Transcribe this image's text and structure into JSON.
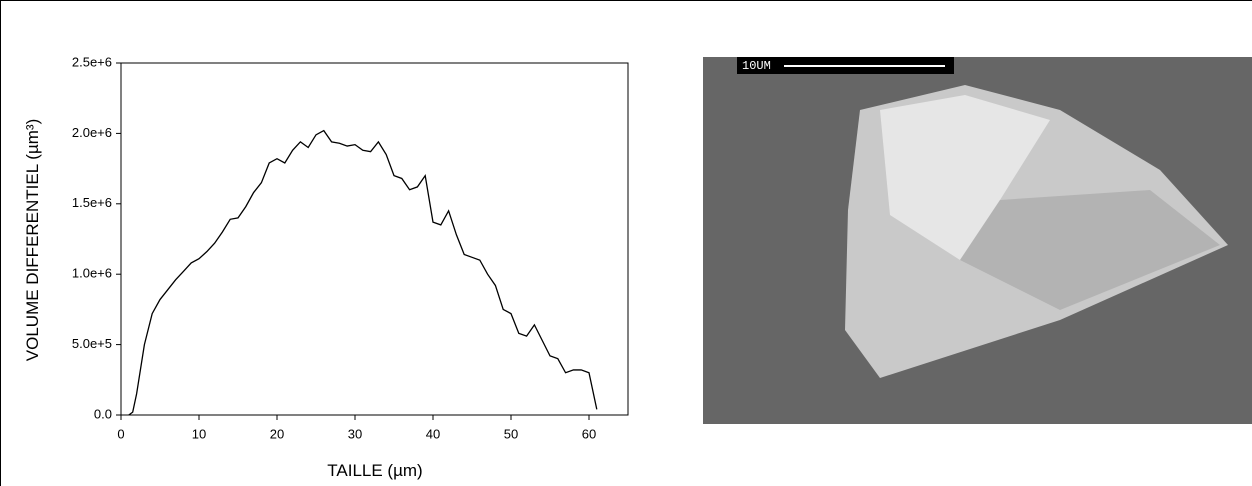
{
  "chart_data": {
    "type": "line",
    "xlabel": "TAILLE (µm)",
    "ylabel": "VOLUME DIFFERENTIEL (µm³)",
    "x": [
      1,
      1.5,
      2,
      3,
      4,
      5,
      6,
      7,
      8,
      9,
      10,
      11,
      12,
      13,
      14,
      15,
      16,
      17,
      18,
      19,
      20,
      21,
      22,
      23,
      24,
      25,
      26,
      27,
      28,
      29,
      30,
      31,
      32,
      33,
      34,
      35,
      36,
      37,
      38,
      39,
      40,
      41,
      42,
      43,
      44,
      45,
      46,
      47,
      48,
      49,
      50,
      51,
      52,
      53,
      54,
      55,
      56,
      57,
      58,
      59,
      60,
      61
    ],
    "series": [
      {
        "color": "#000000",
        "values": [
          0,
          20000,
          150000,
          500000,
          720000,
          820000,
          890000,
          960000,
          1020000,
          1080000,
          1110000,
          1160000,
          1220000,
          1300000,
          1390000,
          1400000,
          1480000,
          1580000,
          1650000,
          1790000,
          1820000,
          1790000,
          1880000,
          1940000,
          1900000,
          1990000,
          2020000,
          1940000,
          1930000,
          1910000,
          1920000,
          1880000,
          1870000,
          1940000,
          1850000,
          1700000,
          1680000,
          1600000,
          1620000,
          1700000,
          1370000,
          1350000,
          1450000,
          1280000,
          1140000,
          1120000,
          1100000,
          1000000,
          920000,
          750000,
          720000,
          580000,
          560000,
          640000,
          530000,
          420000,
          400000,
          300000,
          320000,
          320000,
          300000,
          40000
        ]
      }
    ],
    "xlim": [
      0,
      65
    ],
    "xticks": [
      0,
      10,
      20,
      30,
      40,
      50,
      60
    ],
    "ylim": [
      0,
      2500000
    ],
    "yticks": [
      {
        "value": 0,
        "label": "0.0"
      },
      {
        "value": 500000,
        "label": "5.0e+5"
      },
      {
        "value": 1000000,
        "label": "1.0e+6"
      },
      {
        "value": 1500000,
        "label": "1.5e+6"
      },
      {
        "value": 2000000,
        "label": "2.0e+6"
      },
      {
        "value": 2500000,
        "label": "2.5e+6"
      }
    ]
  },
  "micrograph": {
    "scale_label": "10UM"
  }
}
